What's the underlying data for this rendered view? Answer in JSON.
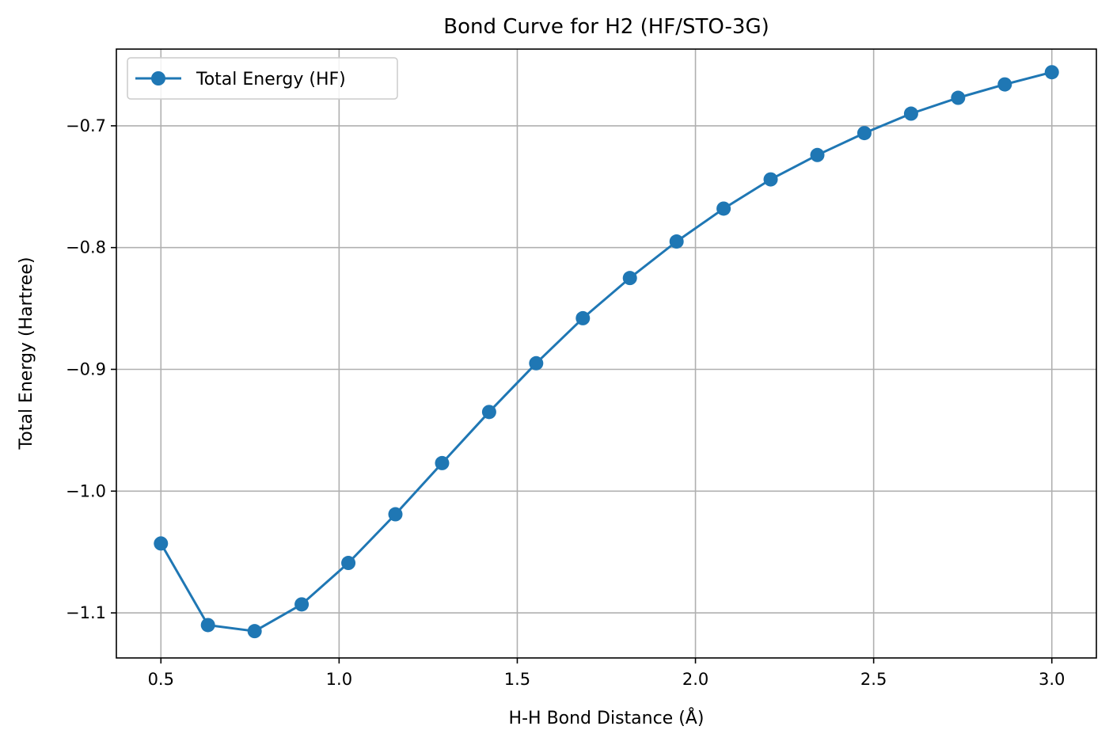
{
  "chart_data": {
    "type": "line",
    "title": "Bond Curve for H2 (HF/STO-3G)",
    "xlabel": "H-H Bond Distance (Å)",
    "ylabel": "Total Energy (Hartree)",
    "xlim": [
      0.375,
      3.125
    ],
    "ylim": [
      -1.137,
      -0.637
    ],
    "xticks": [
      0.5,
      1.0,
      1.5,
      2.0,
      2.5,
      3.0
    ],
    "xtick_labels": [
      "0.5",
      "1.0",
      "1.5",
      "2.0",
      "2.5",
      "3.0"
    ],
    "yticks": [
      -1.1,
      -1.0,
      -0.9,
      -0.8,
      -0.7
    ],
    "ytick_labels": [
      "−1.1",
      "−1.0",
      "−0.9",
      "−0.8",
      "−0.7"
    ],
    "grid": true,
    "legend_position": "top-left",
    "series": [
      {
        "name": "Total Energy (HF)",
        "color": "#1f77b4",
        "marker": "circle",
        "x": [
          0.5,
          0.632,
          0.763,
          0.895,
          1.026,
          1.158,
          1.289,
          1.421,
          1.553,
          1.684,
          1.816,
          1.947,
          2.079,
          2.211,
          2.342,
          2.474,
          2.605,
          2.737,
          2.868,
          3.0
        ],
        "y": [
          -1.043,
          -1.11,
          -1.115,
          -1.093,
          -1.059,
          -1.019,
          -0.977,
          -0.935,
          -0.895,
          -0.858,
          -0.825,
          -0.795,
          -0.768,
          -0.744,
          -0.724,
          -0.706,
          -0.69,
          -0.677,
          -0.666,
          -0.656
        ]
      }
    ]
  }
}
